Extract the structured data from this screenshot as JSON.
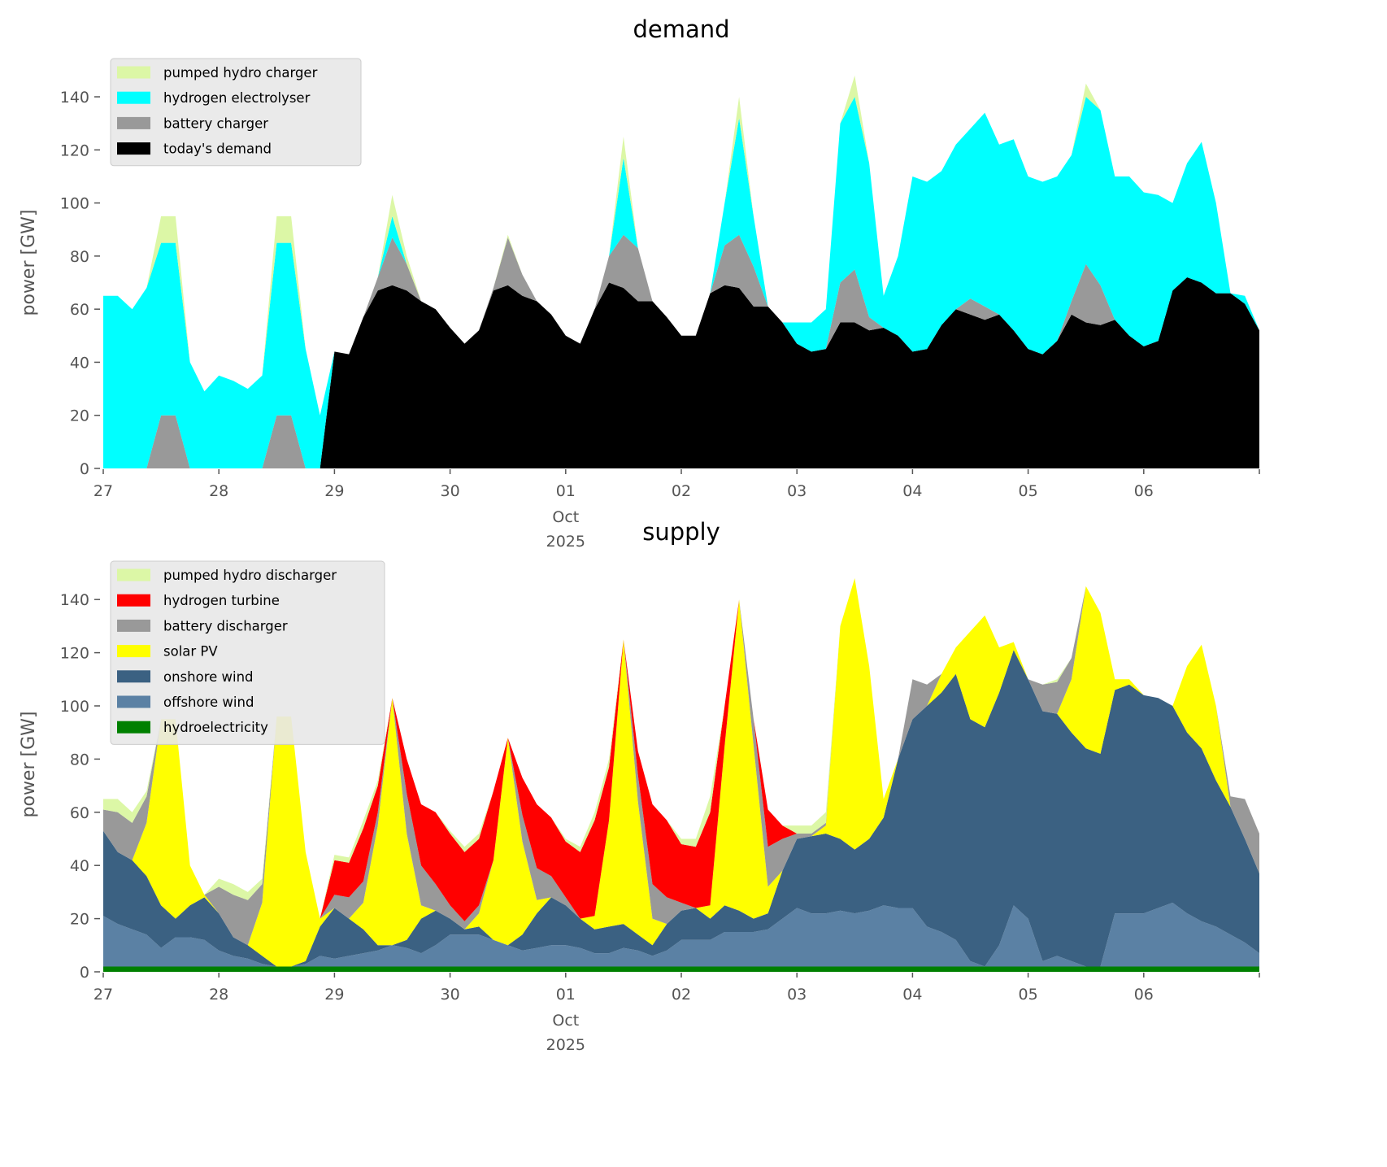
{
  "chart_data": [
    {
      "type": "area",
      "stacked": true,
      "title": "demand",
      "ylabel": "power [GW]",
      "xlabel": "",
      "start": "2025-09-27T00:00",
      "time_step": "3h",
      "ylim": [
        0,
        152
      ],
      "yticks": [
        0,
        20,
        40,
        60,
        80,
        100,
        120,
        140
      ],
      "xticks": [
        "27",
        "28",
        "29",
        "30",
        "01",
        "02",
        "03",
        "04",
        "05",
        "06"
      ],
      "xtick_sublabel": {
        "tick": "01",
        "lines": [
          "Oct",
          "2025"
        ]
      },
      "grid": false,
      "legend_position": "top-left",
      "series": [
        {
          "name": "today's demand",
          "color": "#000000",
          "values": [
            0,
            0,
            0,
            0,
            0,
            0,
            0,
            0,
            0,
            0,
            0,
            0,
            0,
            0,
            0,
            0,
            44,
            43,
            57,
            67,
            69,
            67,
            63,
            60,
            53,
            47,
            52,
            67,
            69,
            65,
            63,
            58,
            50,
            47,
            60,
            70,
            68,
            63,
            63,
            57,
            50,
            50,
            66,
            69,
            68,
            61,
            61,
            55,
            47,
            44,
            45,
            55,
            55,
            52,
            53,
            50,
            44,
            45,
            54,
            60,
            58,
            56,
            58,
            52,
            45,
            43,
            48,
            58,
            55,
            54,
            56,
            50,
            46,
            48,
            67,
            72,
            70,
            66,
            66,
            62,
            52
          ]
        },
        {
          "name": "battery charger",
          "color": "#999999",
          "values": [
            0,
            0,
            0,
            0,
            20,
            20,
            0,
            0,
            0,
            0,
            0,
            0,
            20,
            20,
            0,
            0,
            0,
            0,
            0,
            5,
            18,
            10,
            0,
            0,
            0,
            0,
            0,
            1,
            18,
            8,
            0,
            0,
            0,
            0,
            0,
            10,
            20,
            20,
            0,
            0,
            0,
            0,
            0,
            15,
            20,
            15,
            0,
            0,
            0,
            0,
            0,
            15,
            20,
            5,
            0,
            0,
            0,
            0,
            0,
            0,
            6,
            5,
            0,
            0,
            0,
            0,
            0,
            5,
            22,
            15,
            0,
            0,
            0,
            0,
            0,
            0,
            0,
            0,
            0,
            0,
            0
          ]
        },
        {
          "name": "hydrogen electrolyser",
          "color": "#00ffff",
          "values": [
            65,
            65,
            60,
            68,
            65,
            65,
            40,
            29,
            35,
            33,
            30,
            35,
            65,
            65,
            45,
            20,
            0,
            0,
            0,
            0,
            8,
            0,
            0,
            0,
            0,
            0,
            0,
            0,
            0,
            0,
            0,
            0,
            0,
            0,
            0,
            0,
            29,
            0,
            0,
            0,
            0,
            0,
            0,
            16,
            44,
            19,
            0,
            0,
            8,
            11,
            15,
            60,
            65,
            58,
            12,
            30,
            66,
            63,
            58,
            62,
            64,
            73,
            64,
            72,
            65,
            65,
            62,
            55,
            63,
            66,
            54,
            60,
            58,
            55,
            33,
            43,
            53,
            34,
            0,
            3,
            0
          ]
        },
        {
          "name": "pumped hydro charger",
          "color": "#dcf7a6",
          "values": [
            0,
            0,
            0,
            0,
            10,
            10,
            0,
            0,
            0,
            0,
            0,
            0,
            10,
            10,
            0,
            0,
            0,
            0,
            0,
            0,
            8,
            3,
            0,
            0,
            0,
            0,
            0,
            0,
            1,
            0,
            0,
            0,
            0,
            0,
            0,
            0,
            8,
            0,
            0,
            0,
            0,
            0,
            0,
            0,
            8,
            0,
            0,
            0,
            0,
            0,
            0,
            0,
            8,
            0,
            0,
            0,
            0,
            0,
            0,
            0,
            0,
            0,
            0,
            0,
            0,
            0,
            0,
            0,
            5,
            0,
            0,
            0,
            0,
            0,
            0,
            0,
            0,
            0,
            0,
            0,
            0
          ]
        }
      ]
    },
    {
      "type": "area",
      "stacked": true,
      "title": "supply",
      "ylabel": "power [GW]",
      "xlabel": "",
      "start": "2025-09-27T00:00",
      "time_step": "3h",
      "ylim": [
        0,
        152
      ],
      "yticks": [
        0,
        20,
        40,
        60,
        80,
        100,
        120,
        140
      ],
      "xticks": [
        "27",
        "28",
        "29",
        "30",
        "01",
        "02",
        "03",
        "04",
        "05",
        "06"
      ],
      "xtick_sublabel": {
        "tick": "01",
        "lines": [
          "Oct",
          "2025"
        ]
      },
      "grid": false,
      "legend_position": "top-left",
      "series": [
        {
          "name": "hydroelectricity",
          "color": "#008000",
          "values": [
            2,
            2,
            2,
            2,
            2,
            2,
            2,
            2,
            2,
            2,
            2,
            2,
            2,
            2,
            2,
            2,
            2,
            2,
            2,
            2,
            2,
            2,
            2,
            2,
            2,
            2,
            2,
            2,
            2,
            2,
            2,
            2,
            2,
            2,
            2,
            2,
            2,
            2,
            2,
            2,
            2,
            2,
            2,
            2,
            2,
            2,
            2,
            2,
            2,
            2,
            2,
            2,
            2,
            2,
            2,
            2,
            2,
            2,
            2,
            2,
            2,
            2,
            2,
            2,
            2,
            2,
            2,
            2,
            2,
            2,
            2,
            2,
            2,
            2,
            2,
            2,
            2,
            2,
            2,
            2,
            2
          ]
        },
        {
          "name": "offshore wind",
          "color": "#5b81a4",
          "values": [
            19,
            16,
            14,
            12,
            7,
            11,
            11,
            10,
            6,
            4,
            3,
            1,
            0,
            0,
            1,
            4,
            3,
            4,
            5,
            6,
            8,
            7,
            5,
            8,
            12,
            12,
            12,
            10,
            8,
            6,
            7,
            8,
            8,
            7,
            5,
            5,
            7,
            6,
            4,
            6,
            10,
            10,
            10,
            13,
            13,
            13,
            14,
            18,
            22,
            20,
            20,
            21,
            20,
            21,
            23,
            22,
            22,
            15,
            13,
            10,
            2,
            0,
            8,
            23,
            18,
            2,
            4,
            2,
            0,
            0,
            20,
            20,
            20,
            22,
            24,
            20,
            17,
            15,
            12,
            9,
            5
          ]
        },
        {
          "name": "onshore wind",
          "color": "#3b6182",
          "values": [
            32,
            27,
            26,
            22,
            16,
            7,
            12,
            16,
            14,
            7,
            5,
            3,
            0,
            0,
            1,
            11,
            19,
            14,
            9,
            2,
            0,
            3,
            13,
            13,
            6,
            2,
            3,
            0,
            0,
            6,
            13,
            18,
            15,
            11,
            9,
            10,
            9,
            6,
            4,
            10,
            11,
            12,
            8,
            10,
            8,
            5,
            6,
            18,
            26,
            29,
            30,
            27,
            24,
            27,
            33,
            56,
            71,
            83,
            90,
            100,
            91,
            90,
            95,
            96,
            90,
            94,
            91,
            86,
            82,
            80,
            84,
            86,
            82,
            79,
            74,
            68,
            65,
            55,
            48,
            39,
            30
          ]
        },
        {
          "name": "solar PV",
          "color": "#ffff00",
          "values": [
            0,
            0,
            0,
            20,
            70,
            75,
            15,
            1,
            0,
            0,
            0,
            20,
            94,
            94,
            41,
            3,
            0,
            0,
            10,
            45,
            93,
            40,
            5,
            0,
            0,
            0,
            5,
            30,
            78,
            35,
            5,
            0,
            0,
            0,
            5,
            40,
            107,
            50,
            10,
            0,
            0,
            0,
            5,
            60,
            117,
            65,
            10,
            0,
            0,
            0,
            3,
            80,
            102,
            65,
            7,
            0,
            0,
            0,
            7,
            10,
            33,
            42,
            17,
            3,
            0,
            0,
            0,
            20,
            61,
            53,
            4,
            2,
            0,
            0,
            0,
            25,
            39,
            28,
            0,
            0,
            0
          ]
        },
        {
          "name": "battery discharger",
          "color": "#999999",
          "values": [
            8,
            15,
            14,
            10,
            0,
            0,
            0,
            0,
            10,
            16,
            17,
            7,
            0,
            0,
            0,
            0,
            5,
            8,
            8,
            5,
            0,
            15,
            15,
            10,
            5,
            3,
            3,
            0,
            0,
            10,
            12,
            8,
            3,
            0,
            0,
            0,
            0,
            10,
            13,
            10,
            3,
            0,
            0,
            0,
            0,
            10,
            15,
            12,
            2,
            1,
            1,
            0,
            0,
            0,
            0,
            0,
            15,
            8,
            0,
            0,
            0,
            0,
            0,
            0,
            0,
            10,
            12,
            8,
            0,
            0,
            0,
            0,
            0,
            0,
            0,
            0,
            0,
            0,
            4,
            15,
            15
          ]
        },
        {
          "name": "hydrogen turbine",
          "color": "#ff0000",
          "values": [
            0,
            0,
            0,
            0,
            0,
            0,
            0,
            0,
            0,
            0,
            0,
            0,
            0,
            0,
            0,
            0,
            13,
            13,
            20,
            10,
            0,
            13,
            23,
            27,
            27,
            26,
            25,
            26,
            0,
            14,
            24,
            22,
            21,
            25,
            36,
            20,
            0,
            9,
            30,
            29,
            22,
            23,
            35,
            15,
            0,
            0,
            14,
            5,
            0,
            0,
            0,
            0,
            0,
            0,
            0,
            0,
            0,
            0,
            0,
            0,
            0,
            0,
            0,
            0,
            0,
            0,
            0,
            0,
            0,
            0,
            0,
            0,
            0,
            0,
            0,
            0,
            0,
            0,
            0,
            0,
            0
          ]
        },
        {
          "name": "pumped hydro discharger",
          "color": "#dcf7a6",
          "values": [
            4,
            5,
            4,
            2,
            0,
            0,
            0,
            0,
            3,
            4,
            3,
            2,
            0,
            0,
            0,
            0,
            2,
            2,
            3,
            2,
            0,
            0,
            0,
            0,
            1,
            2,
            2,
            0,
            0,
            0,
            0,
            0,
            1,
            2,
            3,
            3,
            0,
            0,
            0,
            0,
            2,
            3,
            6,
            0,
            0,
            0,
            0,
            0,
            3,
            3,
            4,
            0,
            0,
            0,
            0,
            0,
            0,
            0,
            0,
            0,
            0,
            0,
            0,
            0,
            0,
            0,
            1,
            0,
            0,
            0,
            0,
            0,
            0,
            0,
            0,
            0,
            0,
            0,
            0,
            0,
            0
          ]
        }
      ]
    }
  ]
}
